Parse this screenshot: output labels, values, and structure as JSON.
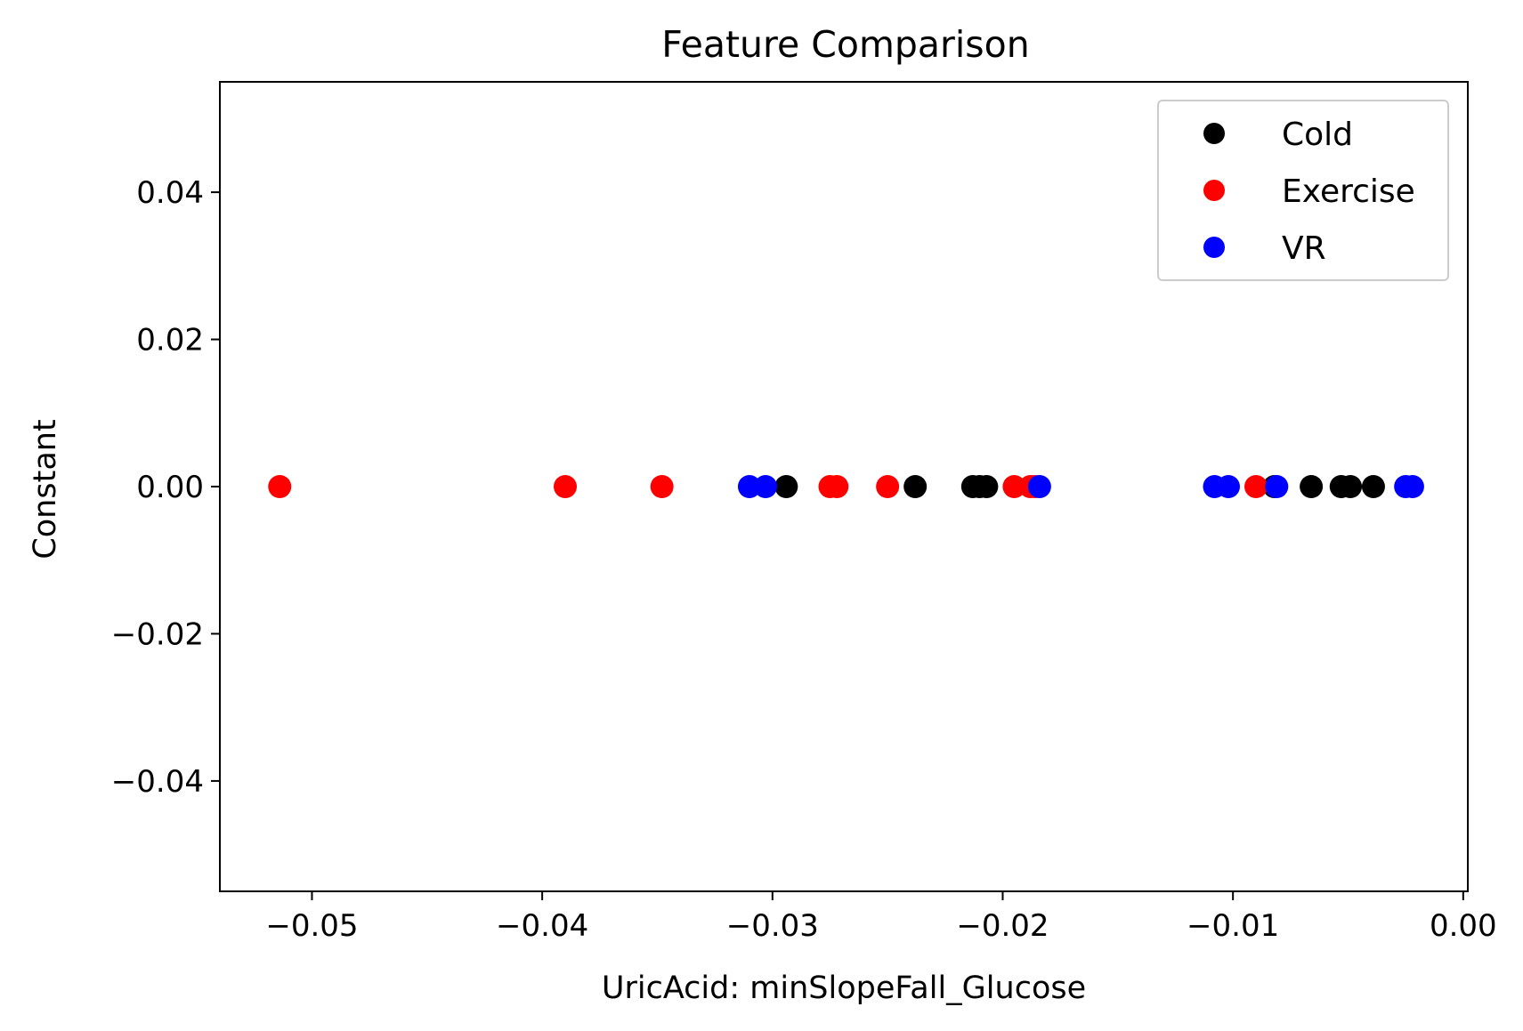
{
  "chart_data": {
    "type": "scatter",
    "title": "Feature Comparison",
    "xlabel": "UricAcid: minSlopeFall_Glucose",
    "ylabel": "Constant",
    "xlim": [
      -0.054,
      0.0002
    ],
    "ylim": [
      -0.055,
      0.055
    ],
    "xticks": [
      -0.05,
      -0.04,
      -0.03,
      -0.02,
      -0.01,
      0.0
    ],
    "xtick_labels": [
      "−0.05",
      "−0.04",
      "−0.03",
      "−0.02",
      "−0.01",
      "0.00"
    ],
    "yticks": [
      0.04,
      0.02,
      0.0,
      -0.02,
      -0.04
    ],
    "ytick_labels": [
      "0.04",
      "0.02",
      "0.00",
      "−0.02",
      "−0.04"
    ],
    "grid": false,
    "legend_position": "top-right",
    "series": [
      {
        "name": "Cold",
        "color": "#000000",
        "x": [
          -0.0294,
          -0.0238,
          -0.0213,
          -0.021,
          -0.0207,
          -0.0082,
          -0.0066,
          -0.0053,
          -0.0049,
          -0.0039
        ],
        "y": [
          0,
          0,
          0,
          0,
          0,
          0,
          0,
          0,
          0,
          0
        ]
      },
      {
        "name": "Exercise",
        "color": "#ff0000",
        "x": [
          -0.0514,
          -0.039,
          -0.0348,
          -0.0275,
          -0.0272,
          -0.025,
          -0.0195,
          -0.0188,
          -0.0186,
          -0.009
        ],
        "y": [
          0,
          0,
          0,
          0,
          0,
          0,
          0,
          0,
          0,
          0
        ]
      },
      {
        "name": "VR",
        "color": "#0000ff",
        "x": [
          -0.031,
          -0.0303,
          -0.0184,
          -0.0108,
          -0.0102,
          -0.0081,
          -0.0025,
          -0.0022
        ],
        "y": [
          0,
          0,
          0,
          0,
          0,
          0,
          0,
          0
        ]
      }
    ]
  }
}
